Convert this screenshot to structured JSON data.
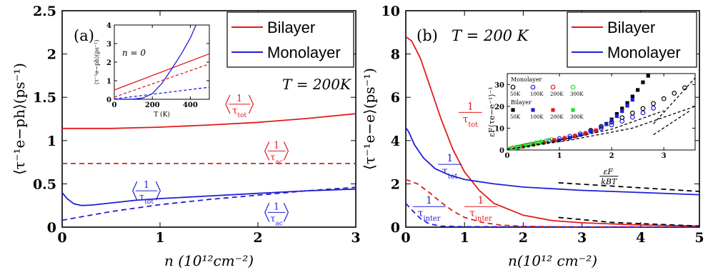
{
  "colors": {
    "red": "#e41a1c",
    "blue": "#1f1fd6",
    "black": "#000000",
    "green": "#22dd22"
  },
  "chart_data": [
    {
      "type": "line",
      "panel_label": "(a)",
      "annotation": "T = 200K",
      "xlabel": "n (10¹²cm⁻²)",
      "ylabel": "⟨τ⁻¹e−ph⟩(ps⁻¹)",
      "xlim": [
        0,
        3
      ],
      "ylim": [
        0,
        2.5
      ],
      "xticks": [
        "0",
        "1",
        "2",
        "3"
      ],
      "yticks": [
        "0",
        "0.5",
        "1",
        "1.5",
        "2",
        "2.5"
      ],
      "legend": {
        "placement": "top-right",
        "entries": [
          "Bilayer",
          "Monolayer"
        ]
      },
      "series": [
        {
          "color": "red",
          "dash": false,
          "x": [
            0,
            0.5,
            1,
            1.5,
            2,
            2.5,
            3
          ],
          "y": [
            1.14,
            1.14,
            1.155,
            1.18,
            1.21,
            1.255,
            1.31
          ]
        },
        {
          "color": "red",
          "dash": true,
          "x": [
            0,
            1,
            2,
            3
          ],
          "y": [
            0.735,
            0.735,
            0.735,
            0.735
          ]
        },
        {
          "color": "blue",
          "dash": false,
          "x": [
            0,
            0.05,
            0.12,
            0.2,
            0.3,
            0.5,
            0.75,
            1,
            1.5,
            2,
            2.5,
            3
          ],
          "y": [
            0.4,
            0.33,
            0.27,
            0.25,
            0.255,
            0.28,
            0.31,
            0.33,
            0.36,
            0.39,
            0.42,
            0.44
          ]
        },
        {
          "color": "blue",
          "dash": true,
          "x": [
            0,
            0.5,
            1,
            1.5,
            2,
            2.5,
            3
          ],
          "y": [
            0.08,
            0.18,
            0.26,
            0.32,
            0.37,
            0.42,
            0.46
          ]
        }
      ],
      "curve_labels": [
        {
          "text": "⟨1/τtot⟩",
          "color": "red",
          "x": 1.7,
          "y": 1.42
        },
        {
          "text": "⟨1/τac⟩",
          "color": "red",
          "x": 2.1,
          "y": 0.88
        },
        {
          "text": "⟨1/τtot⟩",
          "color": "blue",
          "x": 0.75,
          "y": 0.42
        },
        {
          "text": "⟨1/τac⟩",
          "color": "blue",
          "x": 2.1,
          "y": 0.17
        }
      ],
      "inset": {
        "annotation": "n = 0",
        "xlabel": "T (K)",
        "ylabel": "⟨τ⁻¹e−ph⟩(ps⁻¹)",
        "xlim": [
          0,
          500
        ],
        "ylim": [
          0,
          4
        ],
        "xticks": [
          "0",
          "200",
          "400"
        ],
        "yticks": [
          "0",
          "1",
          "2",
          "3",
          "4"
        ],
        "series": [
          {
            "color": "red",
            "dash": false,
            "x": [
              0,
              500
            ],
            "y": [
              0.5,
              2.45
            ]
          },
          {
            "color": "red",
            "dash": true,
            "x": [
              0,
              500
            ],
            "y": [
              0.12,
              1.9
            ]
          },
          {
            "color": "blue",
            "dash": true,
            "x": [
              0,
              500
            ],
            "y": [
              0.02,
              0.65
            ]
          },
          {
            "color": "blue",
            "dash": false,
            "x": [
              0,
              100,
              150,
              200,
              250,
              300,
              350,
              400,
              430
            ],
            "y": [
              0,
              0.01,
              0.07,
              0.3,
              0.85,
              1.6,
              2.4,
              3.3,
              4.0
            ]
          }
        ]
      }
    },
    {
      "type": "line",
      "panel_label": "(b)",
      "annotation": "T = 200 K",
      "xlabel": "n(10¹² cm⁻²)",
      "ylabel": "⟨τ⁻¹e−e⟩(ps⁻¹)",
      "xlim": [
        0,
        5
      ],
      "ylim": [
        0,
        10
      ],
      "xticks": [
        "0",
        "1",
        "2",
        "3",
        "4",
        "5"
      ],
      "yticks": [
        "0",
        "2",
        "4",
        "6",
        "8",
        "10"
      ],
      "legend": {
        "placement": "top-right",
        "entries": [
          "Bilayer",
          "Monolayer"
        ]
      },
      "series": [
        {
          "color": "red",
          "dash": false,
          "x": [
            0,
            0.1,
            0.25,
            0.4,
            0.6,
            0.8,
            1,
            1.25,
            1.5,
            2,
            2.5,
            3,
            4,
            5
          ],
          "y": [
            8.8,
            8.6,
            7.8,
            6.6,
            5.0,
            3.6,
            2.55,
            1.7,
            1.1,
            0.55,
            0.3,
            0.2,
            0.1,
            0.05
          ]
        },
        {
          "color": "red",
          "dash": true,
          "x": [
            0,
            0.2,
            0.4,
            0.6,
            0.8,
            1,
            1.3,
            1.6,
            2,
            2.5,
            3,
            5
          ],
          "y": [
            2.2,
            2.0,
            1.6,
            1.15,
            0.75,
            0.45,
            0.22,
            0.1,
            0.04,
            0.02,
            0.01,
            0.0
          ]
        },
        {
          "color": "blue",
          "dash": false,
          "x": [
            0,
            0.05,
            0.15,
            0.3,
            0.5,
            0.75,
            1,
            1.5,
            2,
            3,
            4,
            5
          ],
          "y": [
            4.6,
            4.4,
            3.8,
            3.2,
            2.7,
            2.4,
            2.2,
            2.0,
            1.85,
            1.7,
            1.6,
            1.5
          ]
        },
        {
          "color": "blue",
          "dash": true,
          "x": [
            0,
            0.1,
            0.25,
            0.4,
            0.6,
            1,
            5
          ],
          "y": [
            1.1,
            0.8,
            0.4,
            0.15,
            0.05,
            0.02,
            0.0
          ]
        },
        {
          "color": "black",
          "dash": true,
          "x": [
            2.6,
            5
          ],
          "y": [
            2.05,
            1.65
          ]
        },
        {
          "color": "black",
          "dash": true,
          "x": [
            2.6,
            3.5,
            5
          ],
          "y": [
            0.45,
            0.22,
            0.05
          ]
        }
      ],
      "curve_labels": [
        {
          "text": "1/τtot",
          "color": "red",
          "x": 0.9,
          "y": 5.3
        },
        {
          "text": "1/τtot",
          "color": "blue",
          "x": 0.55,
          "y": 2.9
        },
        {
          "text": "1/τinter",
          "color": "blue",
          "x": 0.12,
          "y": 0.95
        },
        {
          "text": "1/τinter",
          "color": "red",
          "x": 1.0,
          "y": 0.95
        },
        {
          "text": "εF/kBT",
          "color": "black",
          "x": 3.3,
          "y": 2.35
        }
      ],
      "inset": {
        "ylabel": "εF⟨τe−e⁻¹⟩⁻¹",
        "xlim": [
          0,
          3.6
        ],
        "ylim": [
          0,
          35
        ],
        "xticks": [
          "0",
          "1",
          "2",
          "3"
        ],
        "yticks": [
          "0",
          "10",
          "20",
          "30"
        ],
        "legend_titles": [
          "Monolayer",
          "Bilayer"
        ],
        "legend_labels": [
          "50K",
          "100K",
          "200K",
          "300K"
        ],
        "series": [
          {
            "name": "Monolayer 50K",
            "color": "black",
            "marker": "circle",
            "x": [
              1.6,
              1.8,
              2.0,
              2.2,
              2.4,
              2.6,
              2.8,
              3.0,
              3.2,
              3.4
            ],
            "y": [
              9,
              10.8,
              12.8,
              14.8,
              16.9,
              19,
              21.3,
              23.5,
              26,
              28.5
            ]
          },
          {
            "name": "Monolayer 100K",
            "color": "blue",
            "marker": "circle",
            "x": [
              0.2,
              0.4,
              0.6,
              0.8,
              1.0,
              1.2,
              1.4,
              1.6,
              1.8,
              2.0,
              2.2,
              2.4,
              2.6,
              2.8
            ],
            "y": [
              1.2,
              2.2,
              3.2,
              4.2,
              5.2,
              6.3,
              7.4,
              8.6,
              10,
              11.5,
              13.2,
              15,
              17,
              19.2
            ]
          },
          {
            "name": "Monolayer 200K",
            "color": "red",
            "marker": "circle",
            "x": [
              0.1,
              0.3,
              0.5,
              0.7,
              0.9,
              1.1,
              1.3,
              1.5,
              1.7
            ],
            "y": [
              0.8,
              1.7,
              2.6,
              3.5,
              4.4,
              5.4,
              6.4,
              7.6,
              8.8
            ]
          },
          {
            "name": "Monolayer 300K",
            "color": "green",
            "marker": "circle",
            "x": [
              0.05,
              0.15,
              0.25,
              0.35,
              0.45,
              0.55,
              0.65,
              0.75,
              0.85
            ],
            "y": [
              0.5,
              1.1,
              1.6,
              2.2,
              2.7,
              3.2,
              3.7,
              4.2,
              4.7
            ]
          },
          {
            "name": "Bilayer 50K",
            "color": "black",
            "marker": "square",
            "x": [
              1.9,
              2.0,
              2.1,
              2.2,
              2.3,
              2.4,
              2.5,
              2.6,
              2.7
            ],
            "y": [
              12,
              14,
              16.5,
              19,
              21.5,
              24.5,
              27.5,
              31,
              34
            ]
          },
          {
            "name": "Bilayer 100K",
            "color": "blue",
            "marker": "square",
            "x": [
              1.0,
              1.2,
              1.4,
              1.6,
              1.8,
              1.9,
              2.0,
              2.1,
              2.2,
              2.3,
              2.4
            ],
            "y": [
              4.5,
              5.6,
              6.9,
              8.5,
              10.5,
              11.8,
              13.5,
              15.5,
              17.8,
              20.3,
              23
            ]
          },
          {
            "name": "Bilayer 200K",
            "color": "red",
            "marker": "square",
            "x": [
              0.3,
              0.5,
              0.7,
              0.9,
              1.1,
              1.3,
              1.5,
              1.7
            ],
            "y": [
              1.6,
              2.5,
              3.4,
              4.3,
              5.3,
              6.4,
              7.6,
              9
            ]
          },
          {
            "name": "Bilayer 300K",
            "color": "green",
            "marker": "square",
            "x": [
              0.05,
              0.15,
              0.25,
              0.35,
              0.45,
              0.55,
              0.65
            ],
            "y": [
              0.4,
              1.0,
              1.5,
              2.0,
              2.5,
              3.0,
              3.5
            ]
          },
          {
            "color": "black",
            "dash": true,
            "x": [
              0,
              1.2,
              2.4,
              3.6
            ],
            "y": [
              0.3,
              4.5,
              10,
              20
            ]
          },
          {
            "color": "black",
            "dash": true,
            "x": [
              0,
              1.0,
              2.0,
              3.0
            ],
            "y": [
              0.2,
              4.5,
              9.5,
              18
            ]
          },
          {
            "color": "black",
            "dash": true,
            "x": [
              2.8,
              3.6
            ],
            "y": [
              12,
              33
            ]
          },
          {
            "color": "black",
            "dash": true,
            "x": [
              2.8,
              3.5
            ],
            "y": [
              7,
              18
            ]
          }
        ]
      }
    }
  ]
}
